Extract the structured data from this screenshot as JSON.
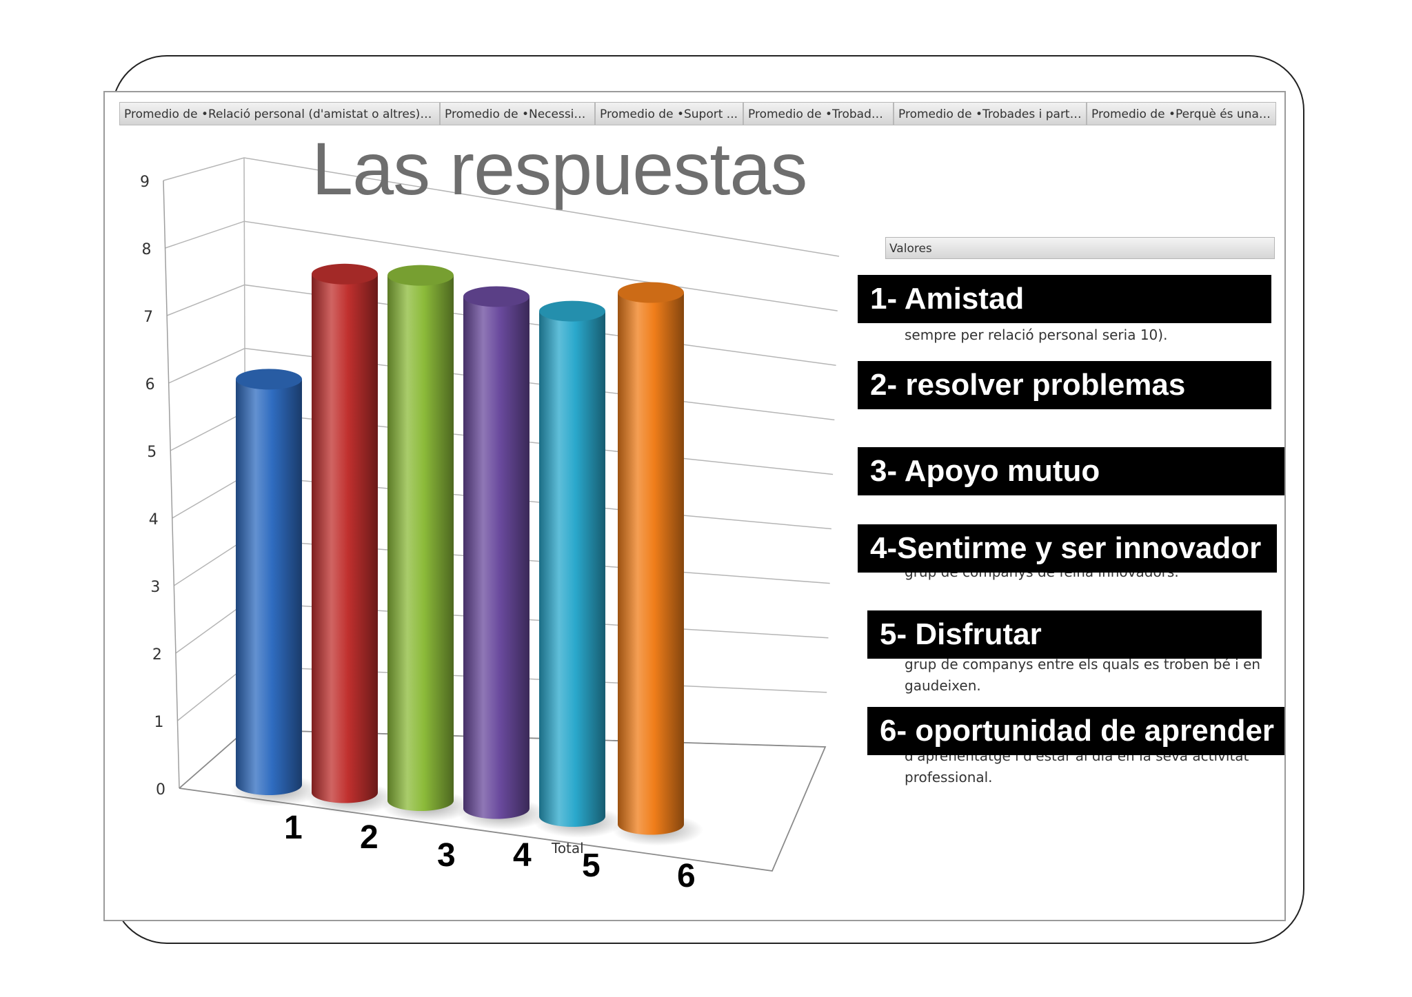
{
  "tabs": [
    "Promedio de •Relació personal (d'amistat o altres) a...",
    "Promedio de •Necessita...",
    "Promedio de •Suport ...",
    "Promedio de •Trobade...",
    "Promedio de •Trobades i parti...",
    "Promedio de •Perquè és una ..."
  ],
  "legend": {
    "header": "Valores",
    "fragments": [
      "sempre per relació personal seria 10).",
      "grup de companys de feina innovadors.",
      "grup de companys entre els quals es troben bé i en",
      "gaudeixen.",
      "d'aprenentatge i d'estar al dia en la seva activitat",
      "professional."
    ]
  },
  "labels": [
    "1- Amistad",
    "2- resolver problemas",
    "3- Apoyo mutuo",
    "4-Sentirme y ser innovador",
    "5- Disfrutar",
    "6- oportunidad de aprender"
  ],
  "category_numbers": [
    "1",
    "2",
    "3",
    "4",
    "5",
    "6"
  ],
  "chart_data": {
    "type": "bar",
    "style": "3d-cylinder",
    "title": "Las respuestas",
    "xlabel": "Total",
    "ylabel": "",
    "categories": [
      "1",
      "2",
      "3",
      "4",
      "5",
      "6"
    ],
    "values": [
      6.1,
      7.8,
      7.9,
      7.7,
      7.6,
      8.0
    ],
    "y_ticks": [
      "0",
      "1",
      "2",
      "3",
      "4",
      "5",
      "6",
      "7",
      "8",
      "9"
    ],
    "ylim": [
      0,
      9
    ],
    "grid": true,
    "legend_position": "right",
    "colors": [
      "#2f6cc0",
      "#c0302e",
      "#8cbb3a",
      "#6a4a9e",
      "#2aa8cc",
      "#f07e1a"
    ]
  }
}
